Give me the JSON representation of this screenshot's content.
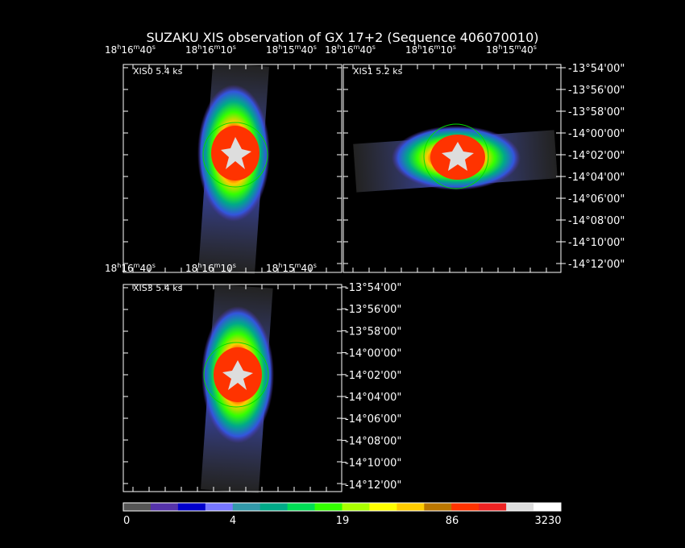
{
  "title": "SUZAKU XIS observation of GX 17+2  (Sequence 406070010)",
  "panels": [
    {
      "label": "XIS0 5.4 ks"
    },
    {
      "label": "XIS1 5.2 ks"
    },
    {
      "label": "XIS3 5.4 ks"
    }
  ],
  "ra_ticks": [
    "18h16m40s",
    "18h16m10s",
    "18h15m40s"
  ],
  "dec_ticks": [
    "-13°54'00\"",
    "-13°56'00\"",
    "-13°58'00\"",
    "-14°00'00\"",
    "-14°02'00\"",
    "-14°04'00\"",
    "-14°06'00\"",
    "-14°08'00\"",
    "-14°10'00\"",
    "-14°12'00\""
  ],
  "colorbar": {
    "colors": [
      "#555555",
      "#5533aa",
      "#0000cc",
      "#7777ff",
      "#3399aa",
      "#00aa88",
      "#00dd55",
      "#33ff00",
      "#aaff00",
      "#ffff00",
      "#ffcc00",
      "#bb7700",
      "#ff3300",
      "#ee2222",
      "#dddddd",
      "#ffffff"
    ],
    "labels": [
      "0",
      "4",
      "19",
      "86",
      "3230"
    ]
  }
}
